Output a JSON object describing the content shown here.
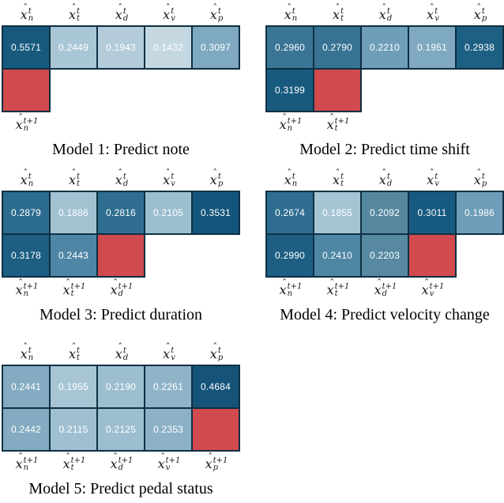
{
  "figure": {
    "background": "#ffffff",
    "grid_border_color": "#0e3044",
    "cell_text_color": "#ffffff",
    "predicted_cell_color": "#d04a4e"
  },
  "features": [
    "n",
    "t",
    "d",
    "v",
    "p"
  ],
  "scripts": {
    "top": "t",
    "bottom": "t+1",
    "base": "x",
    "hat": "ˆ"
  },
  "panels": [
    {
      "caption": "Model 1: Predict note",
      "predicted_feature": "n",
      "top_row": [
        {
          "v": "0.5571",
          "c": "#175a7e",
          "d": false
        },
        {
          "v": "0.2449",
          "c": "#a9c6d6",
          "d": true
        },
        {
          "v": "0.1943",
          "c": "#b4ccd9",
          "d": false
        },
        {
          "v": "0.1432",
          "c": "#c5d8e1",
          "d": false
        },
        {
          "v": "0.3097",
          "c": "#7fa9c0",
          "d": false
        }
      ],
      "bottom_row": [
        {
          "red": true
        }
      ]
    },
    {
      "caption": "Model 2: Predict time shift",
      "predicted_feature": "t",
      "top_row": [
        {
          "v": "0.2960",
          "c": "#3b7596",
          "d": true
        },
        {
          "v": "0.2790",
          "c": "#387394",
          "d": true
        },
        {
          "v": "0.2210",
          "c": "#6f9eb9",
          "d": false
        },
        {
          "v": "0.1951",
          "c": "#7fa9c0",
          "d": false
        },
        {
          "v": "0.2938",
          "c": "#1e6083",
          "d": false
        }
      ],
      "bottom_row": [
        {
          "v": "0.3199",
          "c": "#175a7e",
          "d": false
        },
        {
          "red": true
        }
      ]
    },
    {
      "caption": "Model 3: Predict duration",
      "predicted_feature": "d",
      "top_row": [
        {
          "v": "0.2879",
          "c": "#2c6c8e",
          "d": true
        },
        {
          "v": "0.1886",
          "c": "#a2c2d2",
          "d": false
        },
        {
          "v": "0.2816",
          "c": "#2f6e90",
          "d": true
        },
        {
          "v": "0.2105",
          "c": "#9cbfd0",
          "d": true
        },
        {
          "v": "0.3531",
          "c": "#14557b",
          "d": false
        }
      ],
      "bottom_row": [
        {
          "v": "0.3178",
          "c": "#1d5e82",
          "d": true
        },
        {
          "v": "0.2443",
          "c": "#4f86a5",
          "d": false
        },
        {
          "red": true
        }
      ]
    },
    {
      "caption": "Model 4: Predict velocity change",
      "predicted_feature": "v",
      "top_row": [
        {
          "v": "0.2674",
          "c": "#2f6e91",
          "d": true
        },
        {
          "v": "0.1855",
          "c": "#a5c4d4",
          "d": true
        },
        {
          "v": "0.2092",
          "c": "#55889f",
          "d": false
        },
        {
          "v": "0.3011",
          "c": "#175a80",
          "d": false
        },
        {
          "v": "0.1986",
          "c": "#6d9db8",
          "d": false
        }
      ],
      "bottom_row": [
        {
          "v": "0.2990",
          "c": "#1d5e82",
          "d": true
        },
        {
          "v": "0.2410",
          "c": "#4e86a4",
          "d": true
        },
        {
          "v": "0.2203",
          "c": "#578aa2",
          "d": false
        },
        {
          "red": true
        }
      ]
    },
    {
      "caption": "Model 5: Predict pedal status",
      "predicted_feature": "p",
      "top_row": [
        {
          "v": "0.2441",
          "c": "#84abc1",
          "d": false
        },
        {
          "v": "0.1955",
          "c": "#a7c5d4",
          "d": false
        },
        {
          "v": "0.2190",
          "c": "#9cbecf",
          "d": true
        },
        {
          "v": "0.2261",
          "c": "#8fb4c8",
          "d": true
        },
        {
          "v": "0.4684",
          "c": "#155379",
          "d": false
        }
      ],
      "bottom_row": [
        {
          "v": "0.2442",
          "c": "#84abc1",
          "d": false
        },
        {
          "v": "0.2115",
          "c": "#a0c0d1",
          "d": true
        },
        {
          "v": "0.2125",
          "c": "#9dbed0",
          "d": true
        },
        {
          "v": "0.2353",
          "c": "#8db2c7",
          "d": true
        },
        {
          "red": true
        }
      ]
    }
  ],
  "chart_data": [
    {
      "type": "heatmap",
      "title": "Model 1: Predict note",
      "columns": [
        "x̂_n^t",
        "x̂_t^t",
        "x̂_d^t",
        "x̂_v^t",
        "x̂_p^t"
      ],
      "rows": [
        "t",
        "t+1"
      ],
      "input_weights": [
        0.5571,
        0.2449,
        0.1943,
        0.1432,
        0.3097
      ],
      "next_step_weights": [],
      "predicted_output": "x̂_n^t+1",
      "colorscale": {
        "low": "#c5d8e1",
        "high": "#14557b",
        "predicted": "#d04a4e"
      },
      "legend": "none",
      "grid": true
    },
    {
      "type": "heatmap",
      "title": "Model 2: Predict time shift",
      "columns": [
        "x̂_n^t",
        "x̂_t^t",
        "x̂_d^t",
        "x̂_v^t",
        "x̂_p^t"
      ],
      "rows": [
        "t",
        "t+1"
      ],
      "input_weights": [
        0.296,
        0.279,
        0.221,
        0.1951,
        0.2938
      ],
      "next_step_weights": [
        0.3199
      ],
      "predicted_output": "x̂_t^t+1",
      "colorscale": {
        "low": "#c5d8e1",
        "high": "#14557b",
        "predicted": "#d04a4e"
      },
      "legend": "none",
      "grid": true
    },
    {
      "type": "heatmap",
      "title": "Model 3: Predict duration",
      "columns": [
        "x̂_n^t",
        "x̂_t^t",
        "x̂_d^t",
        "x̂_v^t",
        "x̂_p^t"
      ],
      "rows": [
        "t",
        "t+1"
      ],
      "input_weights": [
        0.2879,
        0.1886,
        0.2816,
        0.2105,
        0.3531
      ],
      "next_step_weights": [
        0.3178,
        0.2443
      ],
      "predicted_output": "x̂_d^t+1",
      "colorscale": {
        "low": "#c5d8e1",
        "high": "#14557b",
        "predicted": "#d04a4e"
      },
      "legend": "none",
      "grid": true
    },
    {
      "type": "heatmap",
      "title": "Model 4: Predict velocity change",
      "columns": [
        "x̂_n^t",
        "x̂_t^t",
        "x̂_d^t",
        "x̂_v^t",
        "x̂_p^t"
      ],
      "rows": [
        "t",
        "t+1"
      ],
      "input_weights": [
        0.2674,
        0.1855,
        0.2092,
        0.3011,
        0.1986
      ],
      "next_step_weights": [
        0.299,
        0.241,
        0.2203
      ],
      "predicted_output": "x̂_v^t+1",
      "colorscale": {
        "low": "#c5d8e1",
        "high": "#14557b",
        "predicted": "#d04a4e"
      },
      "legend": "none",
      "grid": true
    },
    {
      "type": "heatmap",
      "title": "Model 5: Predict pedal status",
      "columns": [
        "x̂_n^t",
        "x̂_t^t",
        "x̂_d^t",
        "x̂_v^t",
        "x̂_p^t"
      ],
      "rows": [
        "t",
        "t+1"
      ],
      "input_weights": [
        0.2441,
        0.1955,
        0.219,
        0.2261,
        0.4684
      ],
      "next_step_weights": [
        0.2442,
        0.2115,
        0.2125,
        0.2353
      ],
      "predicted_output": "x̂_p^t+1",
      "colorscale": {
        "low": "#c5d8e1",
        "high": "#14557b",
        "predicted": "#d04a4e"
      },
      "legend": "none",
      "grid": true
    }
  ]
}
